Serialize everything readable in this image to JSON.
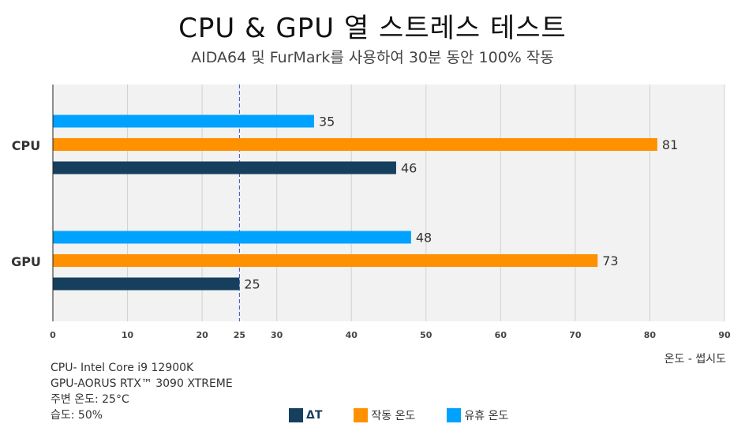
{
  "header": {
    "title": "CPU & GPU 열 스트레스 테스트",
    "subtitle": "AIDA64 및 FurMark를 사용하여 30분 동안 100% 작동"
  },
  "notes": [
    "CPU- Intel Core i9 12900K",
    "GPU-AORUS RTX™ 3090 XTREME",
    "주변 온도: 25°C",
    "습도: 50%"
  ],
  "chart_data": {
    "type": "bar",
    "orientation": "horizontal",
    "title": "CPU & GPU 열 스트레스 테스트",
    "subtitle": "AIDA64 및 FurMark를 사용하여 30분 동안 100% 작동",
    "categories": [
      "CPU",
      "GPU"
    ],
    "series": [
      {
        "name": "유휴 온도",
        "values": [
          35,
          48
        ],
        "color": "#00a2ff"
      },
      {
        "name": "작동 온도",
        "values": [
          81,
          73
        ],
        "color": "#ff9000"
      },
      {
        "name": "ΔT",
        "values": [
          46,
          25
        ],
        "color": "#163f5e"
      }
    ],
    "xlabel": "온도 - 썹시도",
    "xlim": [
      0,
      90
    ],
    "xticks": [
      0,
      10,
      20,
      25,
      30,
      40,
      50,
      60,
      70,
      80,
      90
    ],
    "reference_line": {
      "value": 25,
      "style": "dashed",
      "color": "#3a4fcf"
    },
    "grid": true,
    "legend_position": "bottom",
    "legend": [
      {
        "name": "ΔT",
        "color": "#163f5e"
      },
      {
        "name": "작동 온도",
        "color": "#ff9000"
      },
      {
        "name": "유휴 온도",
        "color": "#00a2ff"
      }
    ]
  }
}
